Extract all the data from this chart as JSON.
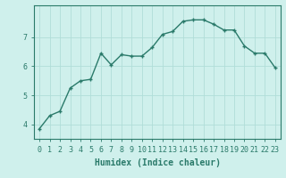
{
  "x": [
    0,
    1,
    2,
    3,
    4,
    5,
    6,
    7,
    8,
    9,
    10,
    11,
    12,
    13,
    14,
    15,
    16,
    17,
    18,
    19,
    20,
    21,
    22,
    23
  ],
  "y": [
    3.85,
    4.3,
    4.45,
    5.25,
    5.5,
    5.55,
    6.45,
    6.05,
    6.4,
    6.35,
    6.35,
    6.65,
    7.1,
    7.2,
    7.55,
    7.6,
    7.6,
    7.45,
    7.25,
    7.25,
    6.7,
    6.45,
    6.45,
    5.95
  ],
  "line_color": "#2a7a6a",
  "marker": "+",
  "marker_size": 3,
  "marker_linewidth": 1.0,
  "bg_color": "#cff0ec",
  "grid_color": "#b0ddd8",
  "axis_color": "#2a7a6a",
  "tick_color": "#2a7a6a",
  "xlabel": "Humidex (Indice chaleur)",
  "yticks": [
    4,
    5,
    6,
    7
  ],
  "ylim": [
    3.5,
    8.1
  ],
  "xlim": [
    -0.5,
    23.5
  ],
  "font_color": "#2a7a6a",
  "label_fontsize": 7,
  "tick_fontsize": 6,
  "linewidth": 1.0
}
